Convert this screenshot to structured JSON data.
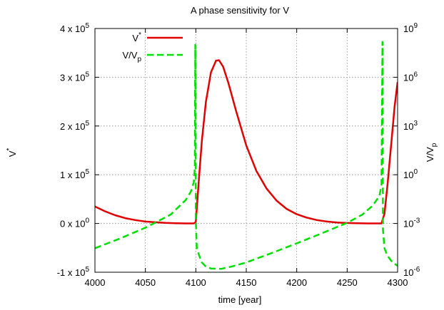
{
  "chart_data": {
    "type": "line",
    "title": "A phase sensitivity for V",
    "xlabel": "time [year]",
    "ylabel": "V*",
    "y2label": "V/Vp",
    "xlim": [
      4000,
      4300
    ],
    "ylim": [
      -100000,
      400000
    ],
    "y2lim": [
      1e-06,
      1000000000.0
    ],
    "y2scale": "log",
    "grid": true,
    "legend_position": "top-left",
    "x_ticks": [
      4000,
      4050,
      4100,
      4150,
      4200,
      4250,
      4300
    ],
    "y_ticks": [
      "-1 x 10^5",
      "0 x 10^0",
      "1 x 10^5",
      "2 x 10^5",
      "3 x 10^5",
      "4 x 10^5"
    ],
    "y2_ticks": [
      "10^-6",
      "10^-3",
      "10^0",
      "10^3",
      "10^6",
      "10^9"
    ],
    "series": [
      {
        "name": "V*",
        "axis": "left",
        "color": "#e00000",
        "style": "solid",
        "points": [
          [
            4000,
            35000
          ],
          [
            4010,
            25000
          ],
          [
            4020,
            17000
          ],
          [
            4030,
            11000
          ],
          [
            4040,
            7000
          ],
          [
            4050,
            4000
          ],
          [
            4060,
            2500
          ],
          [
            4070,
            1200
          ],
          [
            4080,
            600
          ],
          [
            4090,
            200
          ],
          [
            4098,
            100
          ],
          [
            4100,
            3000
          ],
          [
            4103,
            90000
          ],
          [
            4106,
            170000
          ],
          [
            4110,
            250000
          ],
          [
            4115,
            310000
          ],
          [
            4120,
            334000
          ],
          [
            4123,
            335000
          ],
          [
            4127,
            322000
          ],
          [
            4132,
            290000
          ],
          [
            4140,
            230000
          ],
          [
            4150,
            160000
          ],
          [
            4160,
            108000
          ],
          [
            4170,
            72000
          ],
          [
            4180,
            47000
          ],
          [
            4190,
            30000
          ],
          [
            4200,
            19000
          ],
          [
            4210,
            12000
          ],
          [
            4220,
            7000
          ],
          [
            4230,
            4000
          ],
          [
            4240,
            2000
          ],
          [
            4250,
            1000
          ],
          [
            4260,
            500
          ],
          [
            4270,
            200
          ],
          [
            4280,
            100
          ],
          [
            4284,
            200
          ],
          [
            4287,
            20000
          ],
          [
            4290,
            80000
          ],
          [
            4294,
            170000
          ],
          [
            4297,
            240000
          ],
          [
            4300,
            290000
          ]
        ]
      },
      {
        "name": "V/Vp",
        "axis": "right",
        "color": "#00e000",
        "style": "dashed",
        "points": [
          [
            4000,
            3e-05
          ],
          [
            4025,
            0.00012
          ],
          [
            4050,
            0.00055
          ],
          [
            4075,
            0.0035
          ],
          [
            4090,
            0.028
          ],
          [
            4095,
            0.09
          ],
          [
            4098,
            0.35
          ],
          [
            4099,
            2.5
          ],
          [
            4099.5,
            100000000
          ],
          [
            4100,
            0.0015
          ],
          [
            4101,
            3e-05
          ],
          [
            4103,
            1.2e-05
          ],
          [
            4106,
            4e-06
          ],
          [
            4110,
            2.2e-06
          ],
          [
            4115,
            1.7e-06
          ],
          [
            4125,
            1.6e-06
          ],
          [
            4135,
            2.2e-06
          ],
          [
            4150,
            4e-06
          ],
          [
            4175,
            1.5e-05
          ],
          [
            4200,
            6e-05
          ],
          [
            4225,
            0.00025
          ],
          [
            4250,
            0.0011
          ],
          [
            4265,
            0.0035
          ],
          [
            4275,
            0.012
          ],
          [
            4282,
            0.05
          ],
          [
            4284,
            0.25
          ],
          [
            4285,
            150000000
          ],
          [
            4285.5,
            0.0004
          ],
          [
            4287,
            3e-05
          ],
          [
            4290,
            1e-05
          ],
          [
            4295,
            4e-06
          ],
          [
            4300,
            2.5e-06
          ]
        ]
      }
    ]
  }
}
